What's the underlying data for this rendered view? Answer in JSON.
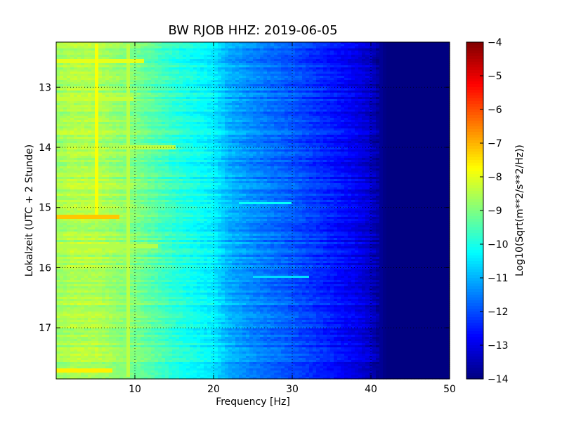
{
  "chart_data": {
    "type": "heatmap",
    "title": "BW RJOB HHZ: 2019-06-05",
    "xlabel": "Frequency [Hz]",
    "ylabel": "Lokalzeit (UTC + 2 Stunde)",
    "xlim": [
      0,
      50
    ],
    "ylim": [
      12.25,
      17.85
    ],
    "y_inverted": true,
    "grid": true,
    "x_ticks": [
      10,
      20,
      30,
      40,
      50
    ],
    "x_tick_labels": [
      "10",
      "20",
      "30",
      "40",
      "50"
    ],
    "y_ticks": [
      13,
      14,
      15,
      16,
      17
    ],
    "y_tick_labels": [
      "13",
      "14",
      "15",
      "16",
      "17"
    ],
    "colormap": "jet",
    "colorbar": {
      "label": "Log10(Sqrt(m**2/s**2/Hz))",
      "range": [
        -14,
        -4
      ],
      "ticks": [
        -4,
        -5,
        -6,
        -7,
        -8,
        -9,
        -10,
        -11,
        -12,
        -13,
        -14
      ],
      "tick_labels": [
        "−4",
        "−5",
        "−6",
        "−7",
        "−8",
        "−9",
        "−10",
        "−11",
        "−12",
        "−13",
        "−14"
      ]
    },
    "spectral_profile": {
      "frequency_hz": [
        0,
        2,
        5,
        8,
        10,
        15,
        20,
        22,
        25,
        30,
        35,
        38,
        40,
        41,
        42,
        50
      ],
      "log10_psd": [
        -8.7,
        -8.5,
        -8.5,
        -8.8,
        -9.0,
        -9.8,
        -10.4,
        -11.0,
        -11.4,
        -11.9,
        -12.5,
        -12.9,
        -13.3,
        -13.7,
        -14.0,
        -14.0
      ]
    },
    "strong_bands": [
      {
        "time_h": 12.56,
        "f_start": 0,
        "f_end": 11,
        "log10_psd": -8.0
      },
      {
        "time_h": 13.2,
        "f_start": 0,
        "f_end": 10,
        "log10_psd": -8.3
      },
      {
        "time_h": 14.0,
        "f_start": 8,
        "f_end": 15,
        "log10_psd": -8.4
      },
      {
        "time_h": 15.15,
        "f_start": 0,
        "f_end": 8,
        "log10_psd": -7.2
      },
      {
        "time_h": 14.93,
        "f_start": 23,
        "f_end": 30,
        "log10_psd": -10.2
      },
      {
        "time_h": 15.65,
        "f_start": 0,
        "f_end": 13,
        "log10_psd": -8.5
      },
      {
        "time_h": 16.15,
        "f_start": 25,
        "f_end": 32,
        "log10_psd": -10.6
      },
      {
        "time_h": 17.7,
        "f_start": 0,
        "f_end": 7,
        "log10_psd": -7.6
      }
    ],
    "line_features": [
      {
        "frequency_hz": 5.0,
        "time_start": 12.3,
        "time_end": 15.2,
        "log10_psd": -7.8
      },
      {
        "frequency_hz": 9.2,
        "time_start": 12.3,
        "time_end": 17.8,
        "log10_psd": -8.4
      }
    ]
  }
}
